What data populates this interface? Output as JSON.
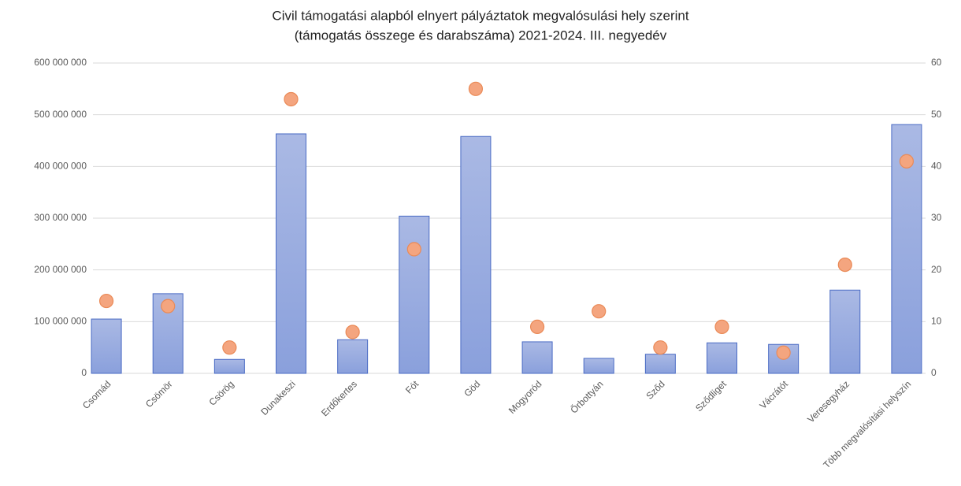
{
  "chart_data": {
    "type": "bar",
    "title": [
      "Civil támogatási alapból elnyert pályáztatok megvalósulási hely szerint",
      "(támogatás összege és darabszáma) 2021-2024. III. negyedév"
    ],
    "categories": [
      "Csomád",
      "Csömör",
      "Csörög",
      "Dunakeszi",
      "Erdőkertes",
      "Fót",
      "Göd",
      "Mogyoród",
      "Őrbottyán",
      "Sződ",
      "Sződliget",
      "Vácrátót",
      "Veresegyház",
      "Több megvalósítási helyszín"
    ],
    "series": [
      {
        "type": "bar",
        "color": "#8fa4dd",
        "values": [
          105000000,
          154000000,
          27000000,
          463000000,
          65000000,
          304000000,
          458000000,
          61000000,
          29000000,
          37000000,
          59000000,
          56000000,
          161000000,
          481000000
        ]
      },
      {
        "type": "scatter",
        "axis": "y2",
        "color": "#f4a57f",
        "values": [
          14,
          13,
          5,
          53,
          8,
          24,
          55,
          9,
          12,
          5,
          9,
          4,
          21,
          41
        ]
      }
    ],
    "ylim": [
      0,
      600000000
    ],
    "yticks": [
      0,
      {
        "value": 100000000,
        "label": "100 000 000"
      },
      {
        "value": 200000000,
        "label": "200 000 000"
      },
      {
        "value": 300000000,
        "label": "300 000 000"
      },
      {
        "value": 400000000,
        "label": "400 000 000"
      },
      {
        "value": 500000000,
        "label": "500 000 000"
      },
      {
        "value": 600000000,
        "label": "600 000 000"
      }
    ],
    "y2lim": [
      0,
      60
    ],
    "y2ticks": [
      0,
      10,
      20,
      30,
      40,
      50,
      60
    ],
    "grid": true
  }
}
